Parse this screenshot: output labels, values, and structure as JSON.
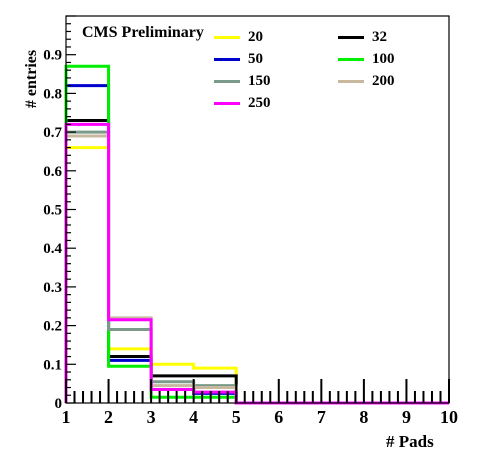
{
  "chart_data": {
    "type": "histogram",
    "title": "CMS Preliminary",
    "xlabel": "# Pads",
    "ylabel": "# entries",
    "xlim": [
      1,
      10
    ],
    "ylim": [
      0,
      1.0
    ],
    "xticks": [
      "1",
      "2",
      "3",
      "4",
      "5",
      "6",
      "7",
      "8",
      "9",
      "10"
    ],
    "yticks": [
      "0",
      "0.1",
      "0.2",
      "0.3",
      "0.4",
      "0.5",
      "0.6",
      "0.7",
      "0.8",
      "0.9"
    ],
    "bin_edges": [
      1,
      2,
      3,
      4,
      5,
      6,
      7,
      8,
      9,
      10
    ],
    "series": [
      {
        "name": "20",
        "color": "#ffff00",
        "values": [
          0.66,
          0.14,
          0.1,
          0.09,
          0.0,
          0.0,
          0.0,
          0.0,
          0.0
        ]
      },
      {
        "name": "32",
        "color": "#000000",
        "values": [
          0.73,
          0.12,
          0.07,
          0.07,
          0.0,
          0.0,
          0.0,
          0.0,
          0.0
        ]
      },
      {
        "name": "50",
        "color": "#0000cc",
        "values": [
          0.82,
          0.11,
          0.035,
          0.025,
          0.0,
          0.0,
          0.0,
          0.0,
          0.0
        ]
      },
      {
        "name": "100",
        "color": "#00ee00",
        "values": [
          0.87,
          0.095,
          0.015,
          0.015,
          0.0,
          0.0,
          0.0,
          0.0,
          0.0
        ]
      },
      {
        "name": "150",
        "color": "#7a9a8a",
        "values": [
          0.7,
          0.19,
          0.055,
          0.045,
          0.0,
          0.0,
          0.0,
          0.0,
          0.0
        ]
      },
      {
        "name": "200",
        "color": "#c8b8a0",
        "values": [
          0.69,
          0.22,
          0.045,
          0.04,
          0.0,
          0.0,
          0.0,
          0.0,
          0.0
        ]
      },
      {
        "name": "250",
        "color": "#ff00ff",
        "values": [
          0.72,
          0.215,
          0.035,
          0.028,
          0.0,
          0.0,
          0.0,
          0.0,
          0.0
        ]
      }
    ],
    "legend": "top-right",
    "grid": false
  }
}
